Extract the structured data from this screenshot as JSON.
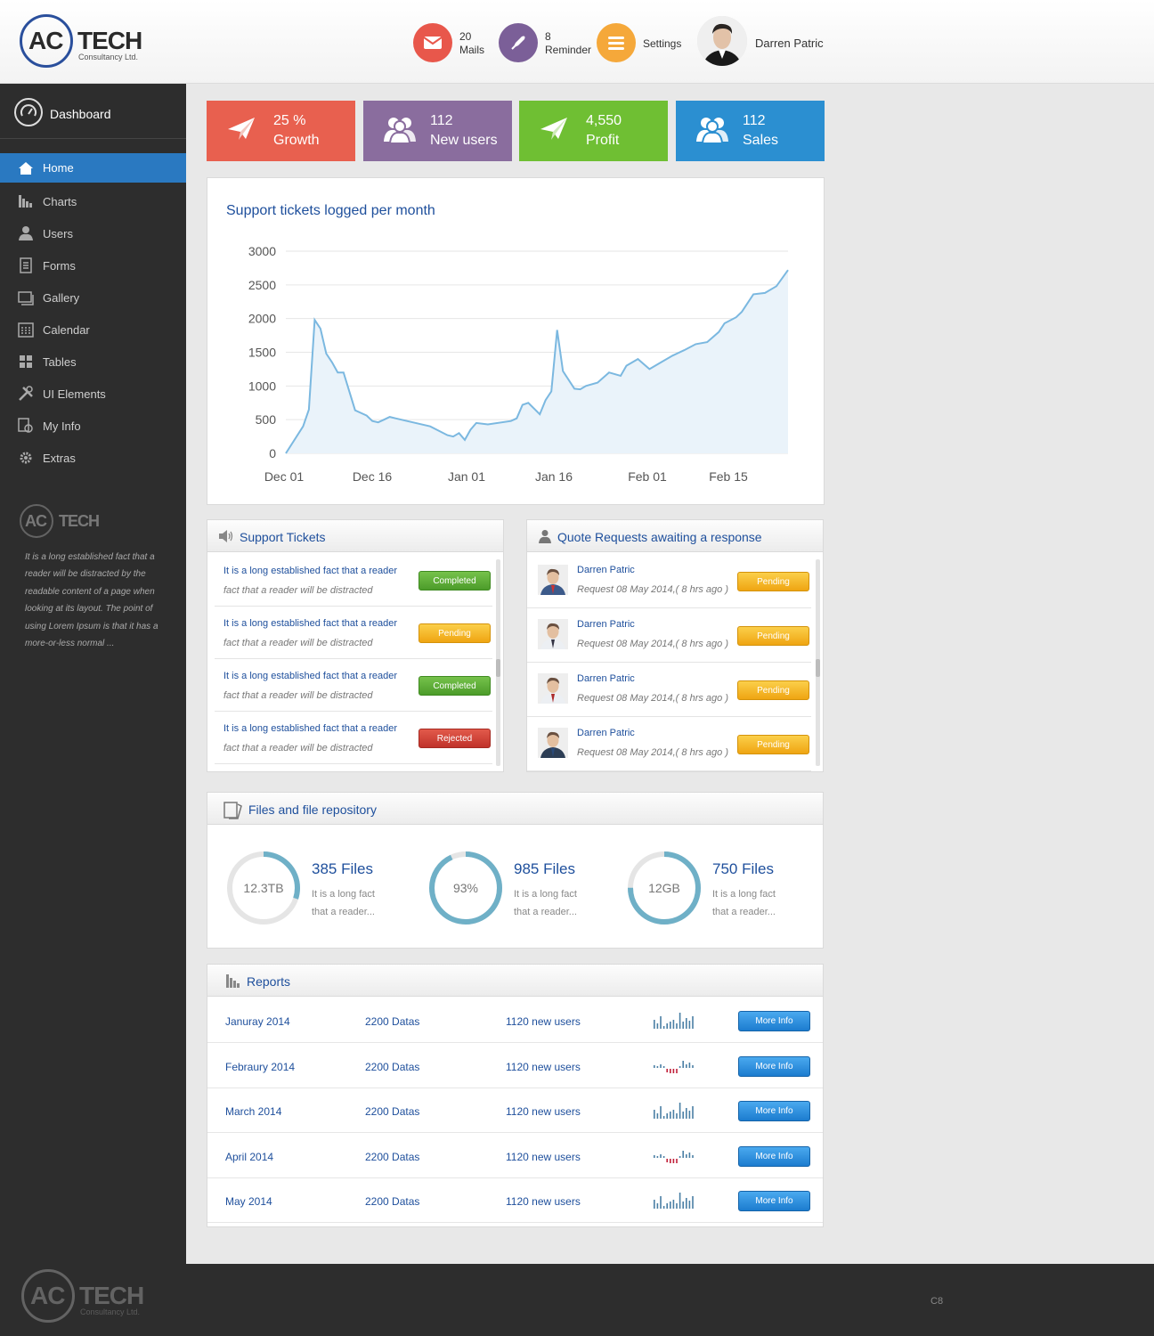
{
  "header": {
    "logo_brand": "AC TECH",
    "logo_ac": "AC",
    "logo_tech": "TECH",
    "logo_sub": "Consultancy Ltd.",
    "mails_count": "20",
    "mails_label": "Mails",
    "reminder_count": "8",
    "reminder_label": "Reminder",
    "settings_label": "Settings",
    "user_name": "Darren Patric",
    "colors": {
      "mails": "#e8574b",
      "reminder": "#7b5f98",
      "settings": "#f5a83a"
    }
  },
  "sidebar": {
    "dashboard_label": "Dashboard",
    "items": [
      {
        "label": "Home",
        "icon": "home-icon",
        "active": true
      },
      {
        "label": "Charts",
        "icon": "bar-chart-icon"
      },
      {
        "label": "Users",
        "icon": "user-icon"
      },
      {
        "label": "Forms",
        "icon": "document-icon"
      },
      {
        "label": "Gallery",
        "icon": "gallery-icon"
      },
      {
        "label": "Calendar",
        "icon": "calendar-icon"
      },
      {
        "label": "Tables",
        "icon": "grid-icon"
      },
      {
        "label": "UI Elements",
        "icon": "tools-icon"
      },
      {
        "label": "My Info",
        "icon": "info-icon"
      },
      {
        "label": "Extras",
        "icon": "gear-icon"
      }
    ],
    "blurb": "It is a long established fact that a reader will be distracted by the readable content of a page when looking at its layout. The point of using Lorem Ipsum is that it has a more-or-less normal ..."
  },
  "stats": [
    {
      "value": "25 %",
      "label": "Growth",
      "icon": "paper-plane-icon",
      "color": "#e8604f"
    },
    {
      "value": "112",
      "label": "New users",
      "icon": "users-icon",
      "color": "#8a6d9e"
    },
    {
      "value": "4,550",
      "label": "Profit",
      "icon": "paper-plane-icon",
      "color": "#6fbf33"
    },
    {
      "value": "112",
      "label": "Sales",
      "icon": "users-icon",
      "color": "#2b8fd1"
    }
  ],
  "chart_data": {
    "type": "area",
    "title": "Support tickets logged per month",
    "x_tick_labels": [
      "Dec 01",
      "Dec 16",
      "Jan 01",
      "Jan 16",
      "Feb 01",
      "Feb 15"
    ],
    "y_ticks": [
      0,
      500,
      1000,
      1500,
      2000,
      2500,
      3000
    ],
    "ylim": [
      0,
      3000
    ],
    "xlim": [
      "2013-12-01",
      "2014-02-26"
    ],
    "grid": true,
    "color": "#7bb8e0",
    "x": [
      "2013-12-01",
      "2013-12-04",
      "2013-12-05",
      "2013-12-06",
      "2013-12-07",
      "2013-12-08",
      "2013-12-09",
      "2013-12-10",
      "2013-12-11",
      "2013-12-12",
      "2013-12-13",
      "2013-12-14",
      "2013-12-15",
      "2013-12-16",
      "2013-12-17",
      "2013-12-18",
      "2013-12-19",
      "2013-12-20",
      "2013-12-21",
      "2013-12-22",
      "2013-12-26",
      "2013-12-29",
      "2013-12-30",
      "2013-12-31",
      "2014-01-01",
      "2014-01-02",
      "2014-01-03",
      "2014-01-05",
      "2014-01-09",
      "2014-01-10",
      "2014-01-11",
      "2014-01-12",
      "2014-01-14",
      "2014-01-15",
      "2014-01-16",
      "2014-01-17",
      "2014-01-18",
      "2014-01-20",
      "2014-01-21",
      "2014-01-22",
      "2014-01-24",
      "2014-01-26",
      "2014-01-28",
      "2014-01-29",
      "2014-01-31",
      "2014-02-02",
      "2014-02-04",
      "2014-02-06",
      "2014-02-08",
      "2014-02-10",
      "2014-02-12",
      "2014-02-14",
      "2014-02-15",
      "2014-02-17",
      "2014-02-18",
      "2014-02-20",
      "2014-02-22",
      "2014-02-24",
      "2014-02-26"
    ],
    "y": [
      0,
      400,
      650,
      1980,
      1850,
      1480,
      1350,
      1200,
      1200,
      920,
      640,
      600,
      560,
      480,
      460,
      500,
      540,
      520,
      500,
      480,
      400,
      270,
      250,
      300,
      200,
      350,
      450,
      430,
      480,
      520,
      720,
      750,
      580,
      790,
      920,
      1830,
      1220,
      960,
      950,
      1000,
      1050,
      1200,
      1150,
      1300,
      1400,
      1250,
      1350,
      1450,
      1530,
      1620,
      1650,
      1800,
      1930,
      2020,
      2100,
      2360,
      2380,
      2480,
      2720
    ]
  },
  "tickets": {
    "title": "Support Tickets",
    "rows": [
      {
        "title": "It is a long established fact that a reader",
        "sub": "fact that a reader will be distracted",
        "status": "Completed"
      },
      {
        "title": "It is a long established fact that a reader",
        "sub": "fact that a reader will be distracted",
        "status": "Pending"
      },
      {
        "title": "It is a long established fact that a reader",
        "sub": "fact that a reader will be distracted",
        "status": "Completed"
      },
      {
        "title": "It is a long established fact that a reader",
        "sub": "fact that a reader will be distracted",
        "status": "Rejected"
      }
    ]
  },
  "quotes": {
    "title": "Quote Requests awaiting a response",
    "rows": [
      {
        "name": "Darren Patric",
        "sub": "Request 08 May 2014,( 8 hrs ago )",
        "status": "Pending"
      },
      {
        "name": "Darren Patric",
        "sub": "Request 08 May 2014,( 8 hrs ago )",
        "status": "Pending"
      },
      {
        "name": "Darren Patric",
        "sub": "Request 08 May 2014,( 8 hrs ago )",
        "status": "Pending"
      },
      {
        "name": "Darren Patric",
        "sub": "Request 08 May 2014,( 8 hrs ago )",
        "status": "Pending"
      }
    ]
  },
  "files": {
    "title": "Files and file repository",
    "items": [
      {
        "label": "12.3TB",
        "title": "385 Files",
        "desc": "It is a long fact that a reader...",
        "fraction": 0.3
      },
      {
        "label": "93%",
        "title": "985 Files",
        "desc": "It is a long fact that a reader...",
        "fraction": 0.93
      },
      {
        "label": "12GB",
        "title": "750 Files",
        "desc": "It is a long fact that a reader...",
        "fraction": 0.75
      }
    ]
  },
  "reports": {
    "title": "Reports",
    "button_label": "More Info",
    "rows": [
      {
        "month": "Januray 2014",
        "datas": "2200 Datas",
        "users": "1120 new users",
        "spark": [
          10,
          6,
          14,
          3,
          6,
          8,
          10,
          6,
          18,
          8,
          12,
          9,
          14
        ],
        "neg": []
      },
      {
        "month": "Febraury 2014",
        "datas": "2200 Datas",
        "users": "1120 new users",
        "spark": [
          3,
          2,
          4,
          2,
          -4,
          -5,
          -5,
          -5,
          2,
          8,
          4,
          6,
          3
        ],
        "neg": [
          4,
          5,
          6,
          7
        ]
      },
      {
        "month": "March 2014",
        "datas": "2200 Datas",
        "users": "1120 new users",
        "spark": [
          10,
          6,
          14,
          3,
          6,
          8,
          10,
          6,
          18,
          8,
          12,
          9,
          14
        ],
        "neg": []
      },
      {
        "month": "April 2014",
        "datas": "2200 Datas",
        "users": "1120 new users",
        "spark": [
          3,
          2,
          4,
          2,
          -4,
          -5,
          -5,
          -5,
          2,
          8,
          4,
          6,
          3
        ],
        "neg": [
          4,
          5,
          6,
          7
        ]
      },
      {
        "month": "May 2014",
        "datas": "2200 Datas",
        "users": "1120 new users",
        "spark": [
          10,
          6,
          14,
          3,
          6,
          8,
          10,
          6,
          18,
          8,
          12,
          9,
          14
        ],
        "neg": []
      }
    ]
  },
  "footer": {
    "code": "C8"
  }
}
